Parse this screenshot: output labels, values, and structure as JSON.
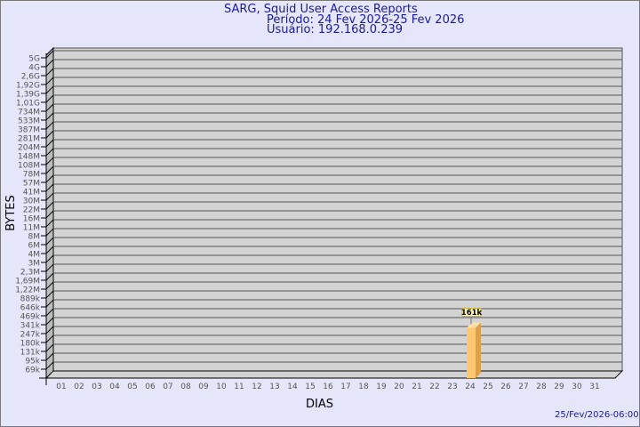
{
  "header": {
    "title": "SARG, Squid User Access Reports",
    "period": "Período: 24 Fev 2026-25 Fev 2026",
    "user": "Usuário: 192.168.0.239"
  },
  "footer": {
    "timestamp": "25/Fev/2026-06:00"
  },
  "chart_data": {
    "type": "bar",
    "xlabel": "DIAS",
    "ylabel": "BYTES",
    "categories": [
      "01",
      "02",
      "03",
      "04",
      "05",
      "06",
      "07",
      "08",
      "09",
      "10",
      "11",
      "12",
      "13",
      "14",
      "15",
      "16",
      "17",
      "18",
      "19",
      "20",
      "21",
      "22",
      "23",
      "24",
      "25",
      "26",
      "27",
      "28",
      "29",
      "30",
      "31"
    ],
    "y_ticks": [
      "5G",
      "4G",
      "2,6G",
      "1,92G",
      "1,39G",
      "1,01G",
      "734M",
      "533M",
      "387M",
      "281M",
      "204M",
      "148M",
      "108M",
      "78M",
      "57M",
      "41M",
      "30M",
      "22M",
      "16M",
      "11M",
      "8M",
      "6M",
      "4M",
      "3M",
      "2,3M",
      "1,69M",
      "1,22M",
      "889k",
      "646k",
      "469k",
      "341k",
      "247k",
      "180k",
      "131k",
      "95k",
      "69k"
    ],
    "y_scale": "log",
    "grid": true,
    "series": [
      {
        "values": [
          null,
          null,
          null,
          null,
          null,
          null,
          null,
          null,
          null,
          null,
          null,
          null,
          null,
          null,
          null,
          null,
          null,
          null,
          null,
          null,
          null,
          null,
          null,
          161000,
          null,
          null,
          null,
          null,
          null,
          null,
          null
        ],
        "labels": {
          "24": "161k"
        }
      }
    ],
    "colors": {
      "bar": "#ffc870",
      "bar_side": "#dba14a",
      "wall": "#d3d3d3",
      "label_bg": "#fff8c0"
    }
  }
}
